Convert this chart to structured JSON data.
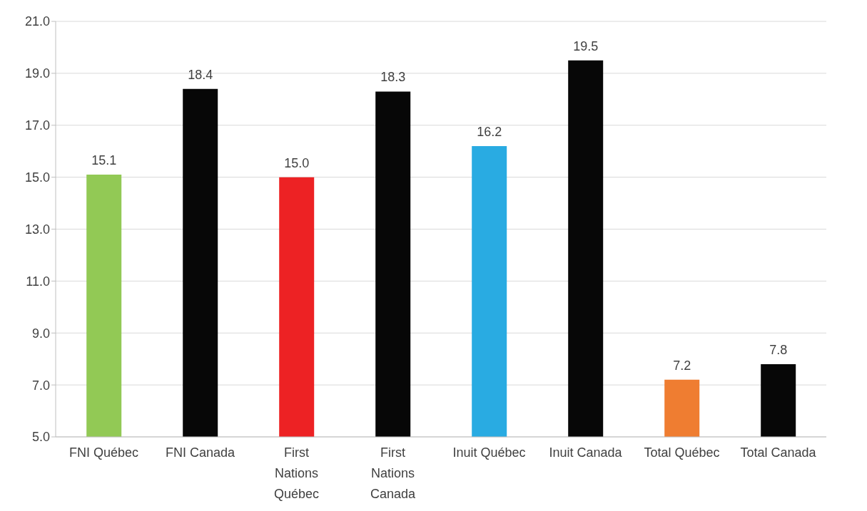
{
  "chart_data": {
    "type": "bar",
    "categories": [
      "FNI Québec",
      "FNI Canada",
      "First Nations Québec",
      "First Nations Canada",
      "Inuit Québec",
      "Inuit Canada",
      "Total Québec",
      "Total Canada"
    ],
    "values": [
      15.1,
      18.4,
      15.0,
      18.3,
      16.2,
      19.5,
      7.2,
      7.8
    ],
    "colors": [
      "#92c955",
      "#070707",
      "#ed2224",
      "#070707",
      "#29abe2",
      "#070707",
      "#ef7d31",
      "#070707"
    ],
    "value_labels": [
      "15.1",
      "18.4",
      "15.0",
      "18.3",
      "16.2",
      "19.5",
      "7.2",
      "7.8"
    ],
    "ylim": [
      5,
      21
    ],
    "yticks": [
      {
        "value": 5,
        "label": "5.0"
      },
      {
        "value": 7,
        "label": "7.0"
      },
      {
        "value": 9,
        "label": "9.0"
      },
      {
        "value": 11,
        "label": "11.0"
      },
      {
        "value": 13,
        "label": "13.0"
      },
      {
        "value": 15,
        "label": "15.0"
      },
      {
        "value": 17,
        "label": "17.0"
      },
      {
        "value": 19,
        "label": "19.0"
      },
      {
        "value": 21,
        "label": "21.0"
      }
    ],
    "grid": "y"
  }
}
